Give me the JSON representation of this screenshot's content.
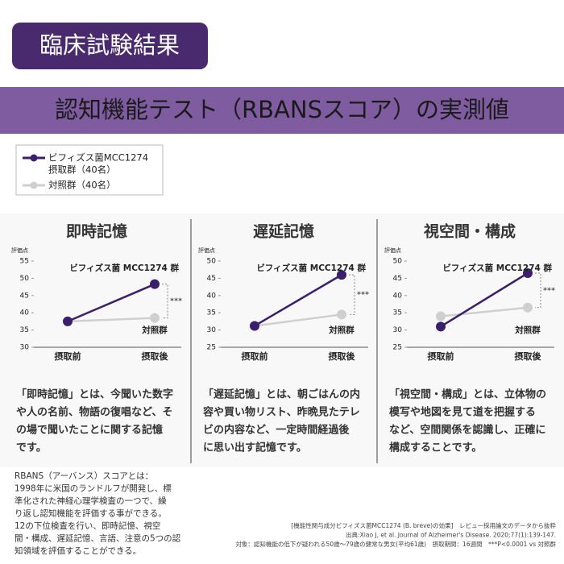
{
  "header": {
    "badge": "臨床試験結果",
    "banner": "認知機能テスト（RBANSスコア）の実測値"
  },
  "legend": {
    "items": [
      {
        "lines": [
          "ビフィズス菌MCC1274",
          "摂取群（40名）"
        ],
        "color": "#3b1f6b"
      },
      {
        "lines": [
          "対照群（40名）"
        ],
        "color": "#cfcfcf"
      }
    ]
  },
  "chart_data": [
    {
      "type": "line",
      "title": "即時記憶",
      "y_label": "評価点",
      "categories": [
        "摂取前",
        "摂取後"
      ],
      "series": [
        {
          "name": "ビフィズス菌 MCC1274 群",
          "color": "#3b1f6b",
          "values": [
            37.5,
            48.3
          ]
        },
        {
          "name": "対照群",
          "color": "#cfcfcf",
          "values": [
            37.5,
            38.5
          ]
        }
      ],
      "significance": "***",
      "ylim": [
        30,
        55
      ],
      "yticks": [
        30,
        35,
        40,
        45,
        50,
        55
      ]
    },
    {
      "type": "line",
      "title": "遅延記憶",
      "y_label": "評価点",
      "categories": [
        "摂取前",
        "摂取後"
      ],
      "series": [
        {
          "name": "ビフィズス菌 MCC1274 群",
          "color": "#3b1f6b",
          "values": [
            31.2,
            46
          ]
        },
        {
          "name": "対照群",
          "color": "#cfcfcf",
          "values": [
            31.2,
            34.5
          ]
        }
      ],
      "significance": "***",
      "ylim": [
        25,
        50
      ],
      "yticks": [
        25,
        30,
        35,
        40,
        45,
        50
      ]
    },
    {
      "type": "line",
      "title": "視空間・構成",
      "y_label": "評価点",
      "categories": [
        "摂取前",
        "摂取後"
      ],
      "series": [
        {
          "name": "ビフィズス菌 MCC1274 群",
          "color": "#3b1f6b",
          "values": [
            31,
            46.5
          ]
        },
        {
          "name": "対照群",
          "color": "#cfcfcf",
          "values": [
            34,
            36.5
          ]
        }
      ],
      "significance": "***",
      "ylim": [
        25,
        50
      ],
      "yticks": [
        25,
        30,
        35,
        40,
        45,
        50
      ]
    }
  ],
  "descriptions": [
    [
      "「即時記憶」とは、今聞いた数字",
      "や人の名前、物語の復唱など、そ",
      "の場で聞いたことに関する記憶",
      "です。"
    ],
    [
      "「遅延記憶」とは、朝ごはんの内",
      "容や買い物リスト、昨晩見たテレ",
      "ビの内容など、一定時間経過後",
      "に思い出す記憶です。"
    ],
    [
      "「視空間・構成」とは、立体物の",
      "模写や地図を見て道を把握する",
      "など、空間関係を認識し、正確に",
      "構成することです。"
    ]
  ],
  "rbans_note": [
    "RBANS（アーバンス）スコアとは：",
    "1998年に米国のランドルフが開発し、標",
    "準化された神経心理学検査の一つで、繰",
    "り返し認知機能を評価する事ができる。",
    "12の下位検査を行い、即時記憶、視空",
    "間・構成、遅延記憶、言語、注意の5つの認",
    "知領域を評価することができる。"
  ],
  "source_note": [
    "[機能性関与成分ビフィズス菌MCC1274 (B. breve)の効果]　レビュー採用論文のデータから抜粋",
    "出典:Xiao J, et al. Journal of Alzheimer's Disease. 2020;77(1):139-147.",
    "対象：認知機能の低下が疑われる50歳～79歳の健常な男女(平均61歳)　摂取期間：16週間　***P<0.0001 vs 対照群"
  ]
}
